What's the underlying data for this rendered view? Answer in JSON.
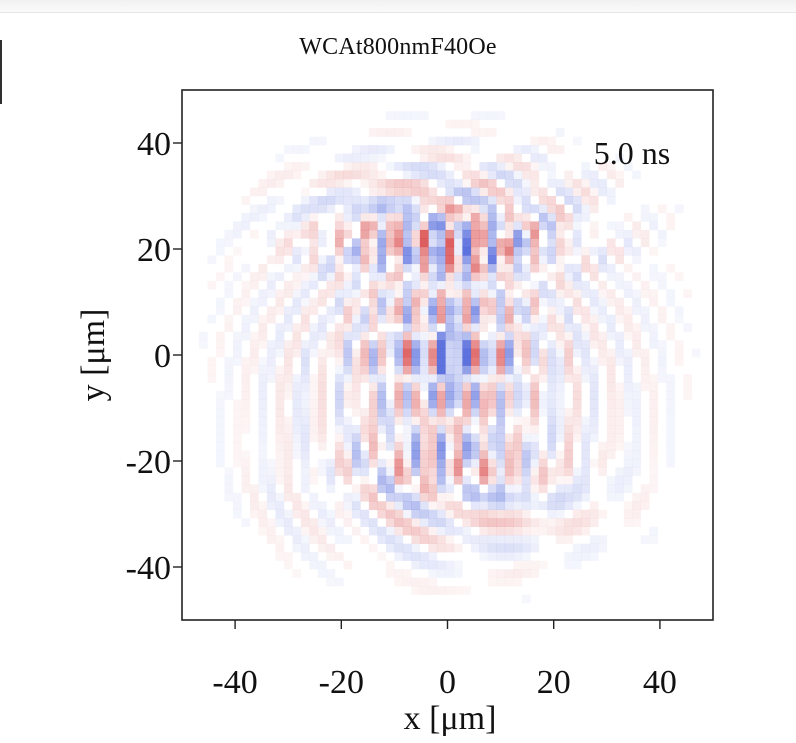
{
  "chart_data": {
    "type": "heatmap",
    "title": "WCAt800nmF40Oe",
    "annotation": "5.0 ns",
    "xlabel": "x [μm]",
    "ylabel": "y [μm]",
    "xlim": [
      -50,
      50
    ],
    "ylim": [
      -50,
      50
    ],
    "x_ticks": [
      -40,
      -20,
      0,
      20,
      40
    ],
    "y_ticks": [
      40,
      20,
      0,
      -20,
      -40
    ],
    "grid": false,
    "colormap": {
      "negative": "#3a53d6",
      "zero": "#ffffff",
      "positive": "#d63a3a"
    },
    "features": [
      {
        "region": "central ring",
        "x_range": [
          -15,
          15
        ],
        "y_range": [
          -13,
          13
        ],
        "amplitude": "strong"
      },
      {
        "region": "upper band",
        "x_range": [
          -15,
          15
        ],
        "y_range": [
          15,
          25
        ],
        "amplitude": "medium"
      },
      {
        "region": "lower band",
        "x_range": [
          -15,
          15
        ],
        "y_range": [
          -25,
          -15
        ],
        "amplitude": "weak"
      },
      {
        "region": "outer arcs",
        "x_range": [
          -30,
          30
        ],
        "y_range": [
          -30,
          30
        ],
        "amplitude": "faint"
      }
    ]
  }
}
